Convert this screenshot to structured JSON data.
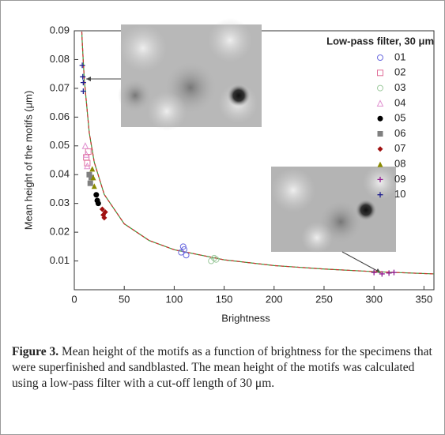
{
  "chart_data": {
    "type": "scatter",
    "legend_title": "Low-pass filter, 30 μm",
    "xlabel": "Brightness",
    "ylabel": "Mean height of the motifs (μm)",
    "xlim": [
      0,
      360
    ],
    "ylim": [
      0,
      0.09
    ],
    "xticks": [
      0,
      50,
      100,
      150,
      200,
      250,
      300,
      350
    ],
    "yticks": [
      0.01,
      0.02,
      0.03,
      0.04,
      0.05,
      0.06,
      0.07,
      0.08,
      0.09
    ],
    "legend": "upper right",
    "series": [
      {
        "name": "01",
        "color": "#6a6adf",
        "marker": "circle-open",
        "x": [
          107,
          110,
          112,
          109
        ],
        "values": [
          0.013,
          0.014,
          0.012,
          0.015
        ]
      },
      {
        "name": "02",
        "color": "#e0709a",
        "marker": "square-open",
        "x": [
          12,
          13,
          14
        ],
        "values": [
          0.046,
          0.044,
          0.048
        ]
      },
      {
        "name": "03",
        "color": "#9cc99c",
        "marker": "circle-open",
        "x": [
          137,
          140,
          142
        ],
        "values": [
          0.01,
          0.011,
          0.0105
        ]
      },
      {
        "name": "04",
        "color": "#e090d0",
        "marker": "triangle-open",
        "x": [
          11,
          12,
          13
        ],
        "values": [
          0.05,
          0.047,
          0.043
        ]
      },
      {
        "name": "05",
        "color": "#000000",
        "marker": "circle",
        "x": [
          22,
          23,
          24
        ],
        "values": [
          0.033,
          0.031,
          0.03
        ]
      },
      {
        "name": "06",
        "color": "#808080",
        "marker": "square",
        "x": [
          15,
          16,
          17
        ],
        "values": [
          0.04,
          0.037,
          0.039
        ]
      },
      {
        "name": "07",
        "color": "#a01010",
        "marker": "diamond",
        "x": [
          28,
          29,
          30,
          31
        ],
        "values": [
          0.028,
          0.026,
          0.025,
          0.027
        ]
      },
      {
        "name": "08",
        "color": "#8a8a00",
        "marker": "triangle",
        "x": [
          18,
          19,
          20
        ],
        "values": [
          0.042,
          0.039,
          0.036
        ]
      },
      {
        "name": "09",
        "color": "#901890",
        "marker": "plus",
        "x": [
          300,
          308,
          315,
          320
        ],
        "values": [
          0.006,
          0.0055,
          0.0058,
          0.006
        ]
      },
      {
        "name": "10",
        "color": "#202090",
        "marker": "plus",
        "x": [
          8,
          8.5,
          9,
          9
        ],
        "values": [
          0.078,
          0.074,
          0.072,
          0.069
        ]
      }
    ],
    "fit": {
      "colors": [
        "#3a9a3a",
        "#d03030"
      ],
      "x": [
        7.5,
        8,
        10,
        15,
        20,
        30,
        50,
        75,
        100,
        150,
        200,
        250,
        300,
        360
      ],
      "values": [
        0.0897,
        0.0857,
        0.073,
        0.0545,
        0.0443,
        0.0331,
        0.0229,
        0.0171,
        0.0139,
        0.0104,
        0.0084,
        0.0072,
        0.0063,
        0.0055
      ]
    }
  },
  "caption": {
    "label": "Figure 3.",
    "text": "Mean height of the motifs as a function of brightness for the specimens that were superfinished and sandblasted. The mean height of the motifs was calculated using a low-pass filter with a cut-off length of 30 μm."
  }
}
